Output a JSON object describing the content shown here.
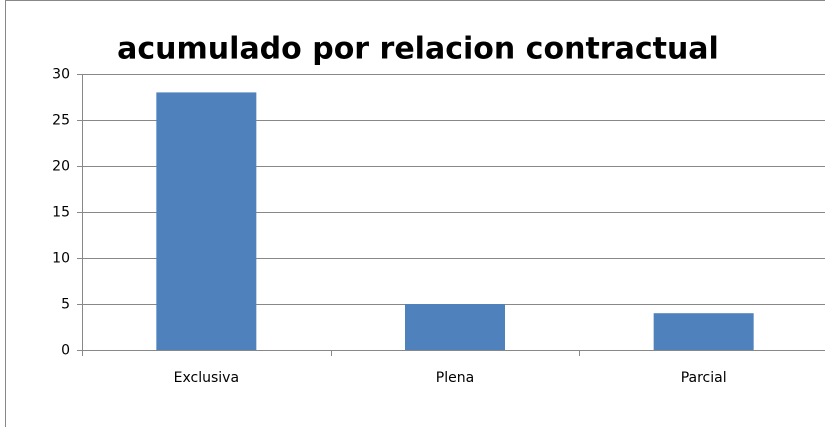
{
  "chart_data": {
    "type": "bar",
    "title": "acumulado por relacion contractual",
    "categories": [
      "Exclusiva",
      "Plena",
      "Parcial"
    ],
    "values": [
      28,
      5,
      4
    ],
    "color": "#4f81bd",
    "ylim": [
      0,
      30
    ],
    "yticks": [
      0,
      5,
      10,
      15,
      20,
      25,
      30
    ],
    "grid": true
  }
}
